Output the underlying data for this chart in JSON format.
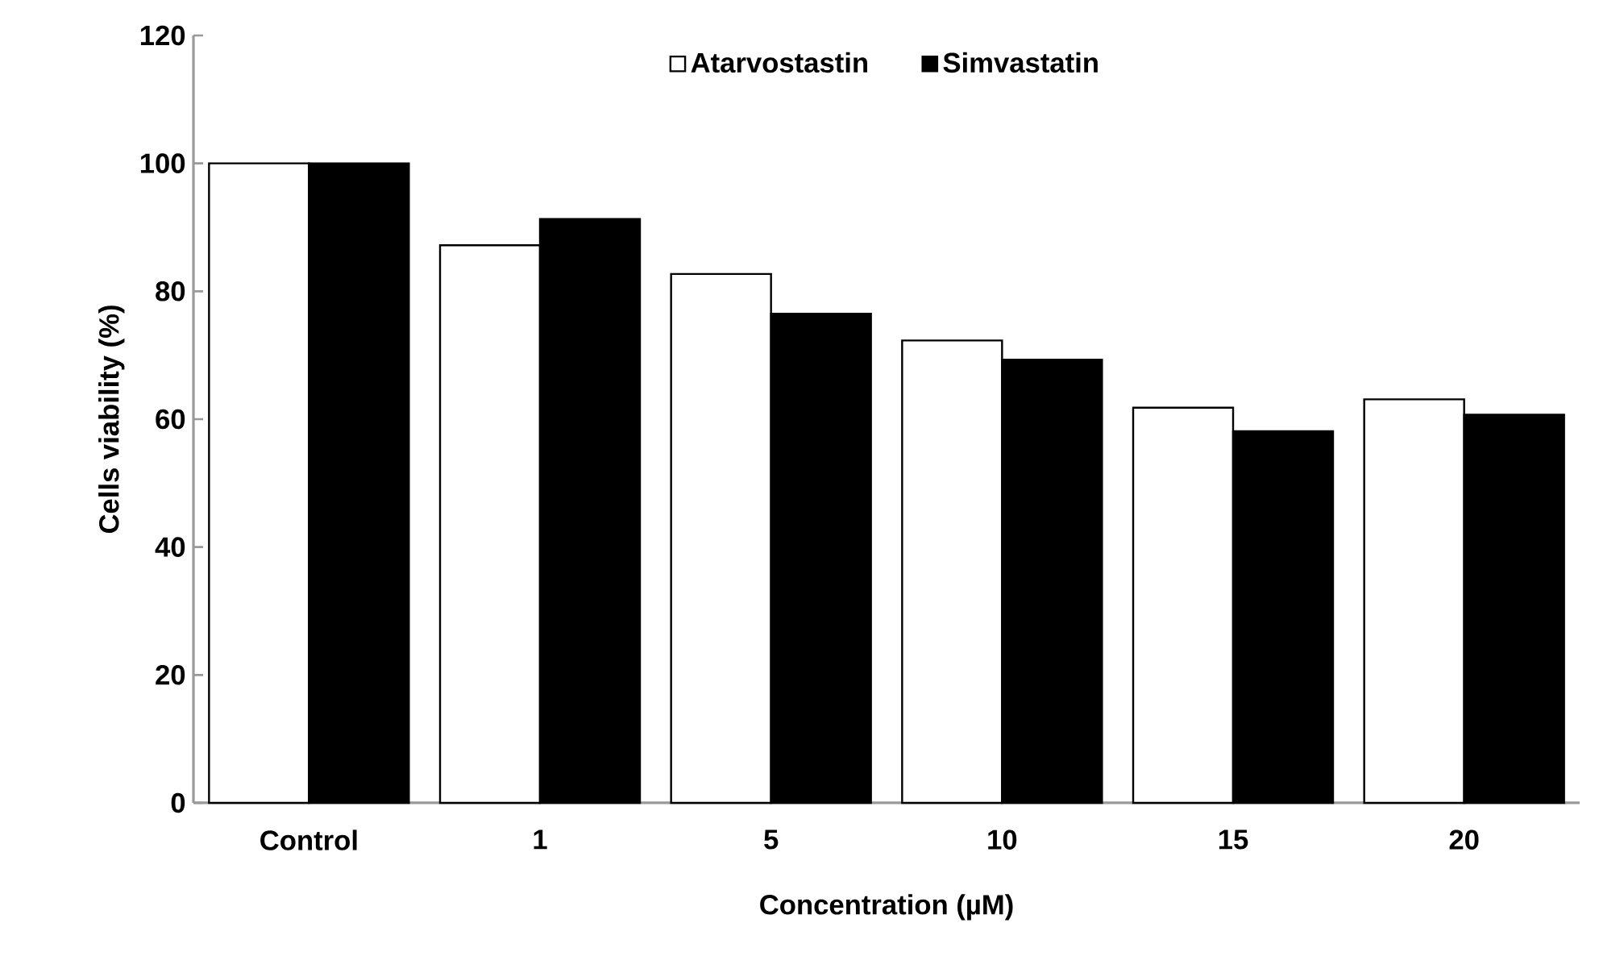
{
  "chart_data": {
    "type": "bar",
    "xlabel": "Concentration (µM)",
    "ylabel": "Cells viability (%)",
    "categories": [
      "Control",
      "1",
      "5",
      "10",
      "15",
      "20"
    ],
    "series": [
      {
        "name": "Atarvostastin",
        "color": "#ffffff",
        "values": [
          100,
          87.2,
          82.7,
          72.3,
          61.8,
          63.1
        ]
      },
      {
        "name": "Simvastatin",
        "color": "#000000",
        "values": [
          100,
          91.3,
          76.5,
          69.3,
          58.1,
          60.7
        ]
      }
    ],
    "ylim": [
      0,
      120
    ],
    "yticks": [
      0,
      20,
      40,
      60,
      80,
      100,
      120
    ],
    "legend": "top",
    "grid": false
  }
}
